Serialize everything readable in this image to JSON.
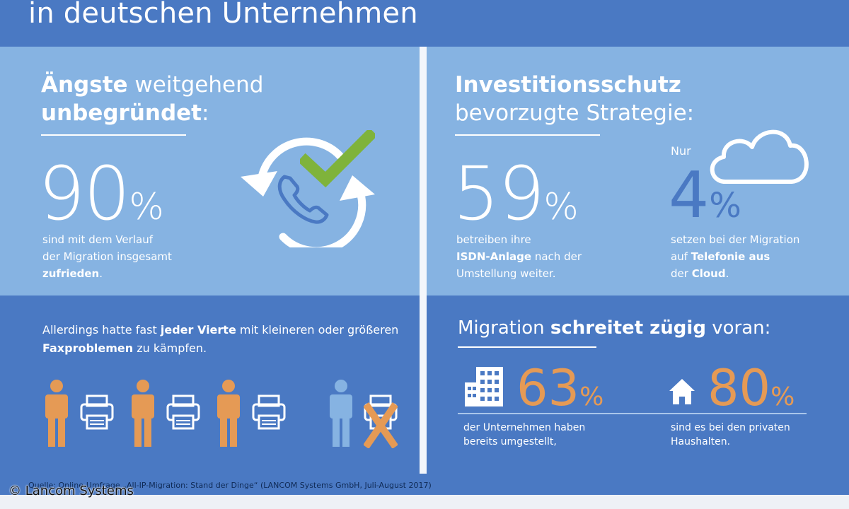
{
  "header": {
    "title": "in deutschen Unternehmen"
  },
  "left_top": {
    "heading_bold": "Ängste",
    "heading_normal": "weitgehend",
    "heading_line2_bold": "unbegründet",
    "heading_line2_normal": ":",
    "big_number": "90",
    "percent": "%",
    "caption_line1": "sind mit dem Verlauf",
    "caption_line2": "der Migration insgesamt",
    "caption_line3_bold": "zufrieden",
    "caption_line3_normal": "."
  },
  "right_top": {
    "heading_bold": "Investitionsschutz",
    "heading_line2": "bevorzugte Strategie:",
    "big_number": "59",
    "percent": "%",
    "caption_line1": "betreiben ihre",
    "caption_line2_bold": "ISDN-Anlage",
    "caption_line2_normal": "nach der",
    "caption_line3": "Umstellung weiter.",
    "nur": "Nur",
    "cloud_number": "4",
    "cloud_percent": "%",
    "cloud_caption_line1": "setzen bei der Migration",
    "cloud_caption_line2_normal": "auf",
    "cloud_caption_line2_bold": "Telefonie aus",
    "cloud_caption_line3_normal": "der",
    "cloud_caption_line3_bold": "Cloud",
    "cloud_caption_line3_end": "."
  },
  "left_bottom": {
    "text_a": "Allerdings hatte fast",
    "text_bold1": "jeder Vierte",
    "text_b": "mit kleineren oder größeren",
    "text_bold2": "Faxproblemen",
    "text_c": "zu kämpfen."
  },
  "right_bottom": {
    "heading_normal1": "Migration",
    "heading_bold": "schreitet zügig",
    "heading_normal2": "voran:",
    "stat1_number": "63",
    "stat1_percent": "%",
    "stat1_line1": "der Unternehmen haben",
    "stat1_line2": "bereits umgestellt,",
    "stat2_number": "80",
    "stat2_percent": "%",
    "stat2_line1": "sind es bei den privaten",
    "stat2_line2": "Haushalten."
  },
  "footer": {
    "source": "Quelle: Online-Umfrage „All-IP-Migration: Stand der Dinge“ (LANCOM Systems GmbH, Juli-August 2017)",
    "copyright": "© Lancom Systems"
  },
  "colors": {
    "dark_blue": "#4a79c3",
    "light_blue": "#86b3e2",
    "orange": "#e59a55",
    "green_check": "#7fb33b",
    "white": "#ffffff"
  },
  "icons": [
    "phone-refresh-icon",
    "check-icon",
    "cloud-icon",
    "person-icon",
    "fax-icon",
    "building-icon",
    "house-icon"
  ]
}
